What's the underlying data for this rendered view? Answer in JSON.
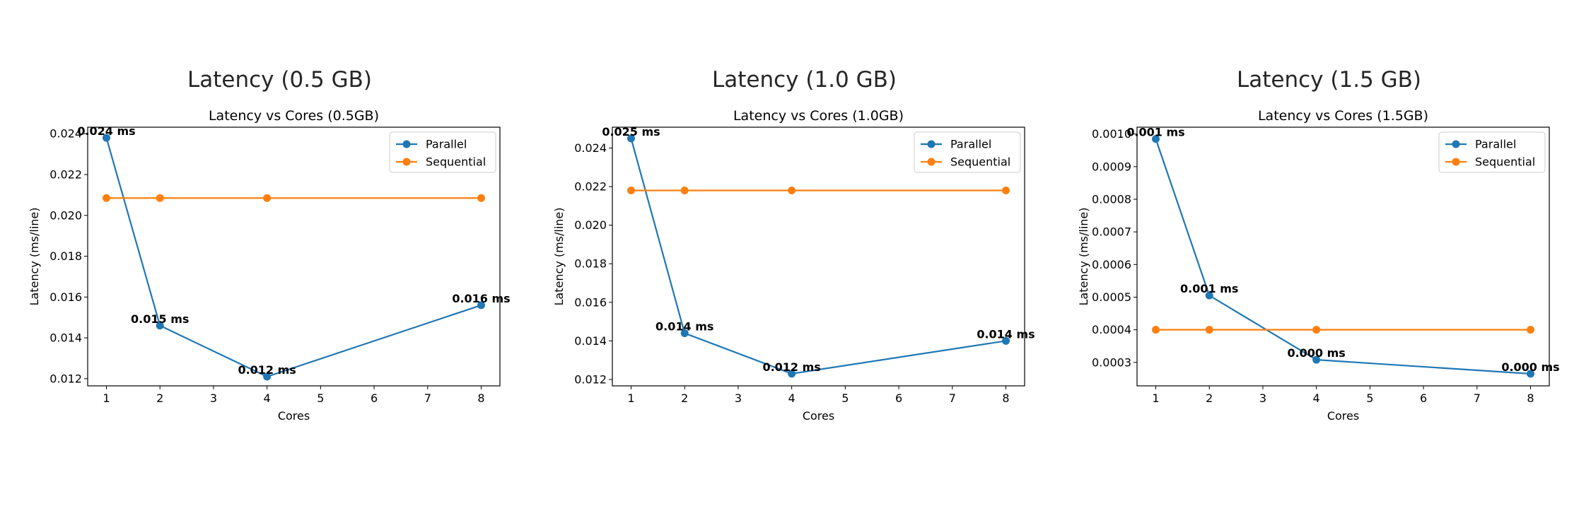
{
  "panels": [
    {
      "heading": "Latency (0.5 GB)"
    },
    {
      "heading": "Latency (1.0 GB)"
    },
    {
      "heading": "Latency (1.5 GB)"
    }
  ],
  "colors": {
    "parallel": "#1f77b4",
    "sequential": "#ff7f0e"
  },
  "chart_data": [
    {
      "type": "line",
      "title": "Latency vs Cores (0.5GB)",
      "xlabel": "Cores",
      "ylabel": "Latency (ms/line)",
      "xlim": [
        0.65,
        8.35
      ],
      "ylim": [
        0.01165,
        0.02432
      ],
      "xticks": [
        1,
        2,
        3,
        4,
        5,
        6,
        7,
        8
      ],
      "yticks": [
        0.012,
        0.014,
        0.016,
        0.018,
        0.02,
        0.022,
        0.024
      ],
      "ytick_labels": [
        "0.012",
        "0.014",
        "0.016",
        "0.018",
        "0.020",
        "0.022",
        "0.024"
      ],
      "legend": "upper right",
      "x": [
        1,
        2,
        4,
        8
      ],
      "series": [
        {
          "name": "Parallel",
          "values": [
            0.0238,
            0.0146,
            0.0121,
            0.0156
          ],
          "labels": [
            "0.024 ms",
            "0.015 ms",
            "0.012 ms",
            "0.016 ms"
          ]
        },
        {
          "name": "Sequential",
          "values": [
            0.02085,
            0.02085,
            0.02085,
            0.02085
          ]
        }
      ]
    },
    {
      "type": "line",
      "title": "Latency vs Cores (1.0GB)",
      "xlabel": "Cores",
      "ylabel": "Latency (ms/line)",
      "xlim": [
        0.65,
        8.35
      ],
      "ylim": [
        0.01167,
        0.02508
      ],
      "xticks": [
        1,
        2,
        3,
        4,
        5,
        6,
        7,
        8
      ],
      "yticks": [
        0.012,
        0.014,
        0.016,
        0.018,
        0.02,
        0.022,
        0.024
      ],
      "ytick_labels": [
        "0.012",
        "0.014",
        "0.016",
        "0.018",
        "0.020",
        "0.022",
        "0.024"
      ],
      "legend": "upper right",
      "x": [
        1,
        2,
        4,
        8
      ],
      "series": [
        {
          "name": "Parallel",
          "values": [
            0.0245,
            0.0144,
            0.0123,
            0.014
          ],
          "labels": [
            "0.025 ms",
            "0.014 ms",
            "0.012 ms",
            "0.014 ms"
          ]
        },
        {
          "name": "Sequential",
          "values": [
            0.0218,
            0.0218,
            0.0218,
            0.0218
          ]
        }
      ]
    },
    {
      "type": "line",
      "title": "Latency vs Cores (1.5GB)",
      "xlabel": "Cores",
      "ylabel": "Latency (ms/line)",
      "xlim": [
        0.65,
        8.35
      ],
      "ylim": [
        0.000228,
        0.001021
      ],
      "xticks": [
        1,
        2,
        3,
        4,
        5,
        6,
        7,
        8
      ],
      "yticks": [
        0.0003,
        0.0004,
        0.0005,
        0.0006,
        0.0007,
        0.0008,
        0.0009,
        0.001
      ],
      "ytick_labels": [
        "0.0003",
        "0.0004",
        "0.0005",
        "0.0006",
        "0.0007",
        "0.0008",
        "0.0009",
        "0.0010"
      ],
      "legend": "upper right",
      "x": [
        1,
        2,
        4,
        8
      ],
      "series": [
        {
          "name": "Parallel",
          "values": [
            0.000985,
            0.000505,
            0.000308,
            0.000265
          ],
          "labels": [
            "0.001 ms",
            "0.001 ms",
            "0.000 ms",
            "0.000 ms"
          ]
        },
        {
          "name": "Sequential",
          "values": [
            0.0004,
            0.0004,
            0.0004,
            0.0004
          ]
        }
      ]
    }
  ]
}
